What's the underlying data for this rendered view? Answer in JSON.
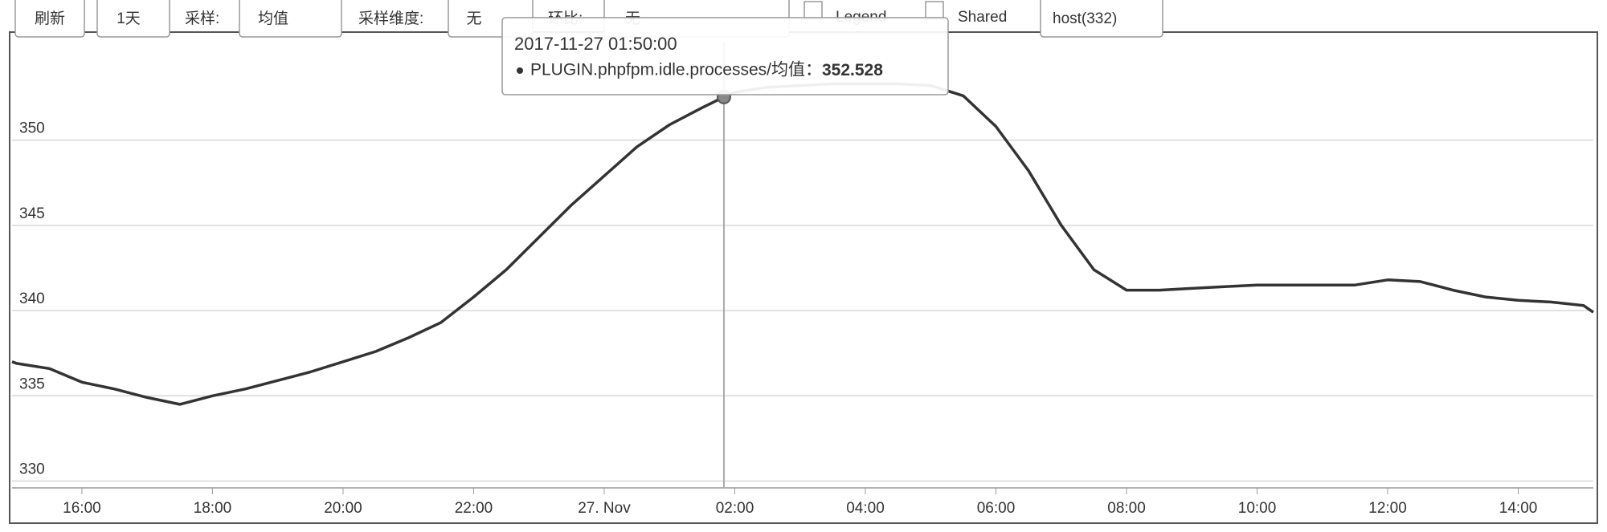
{
  "toolbar": {
    "refresh": "刷新",
    "range": "1天",
    "sample_label": "采样:",
    "sample": "均值",
    "dimension_label": "采样维度:",
    "dimension": "无",
    "compare_label": "环比:",
    "compare": "无",
    "legend": "Legend",
    "shared": "Shared",
    "host": "host(332)"
  },
  "chart_data": {
    "type": "line",
    "x": [
      14.93,
      15.0,
      15.5,
      16.0,
      16.5,
      17.0,
      17.5,
      18.0,
      18.5,
      19.0,
      19.5,
      20.0,
      20.5,
      21.0,
      21.5,
      22.0,
      22.5,
      23.0,
      23.5,
      24.0,
      24.5,
      25.0,
      25.5,
      25.8333,
      26.0,
      26.5,
      27.0,
      27.5,
      28.0,
      28.5,
      29.0,
      29.5,
      30.0,
      30.5,
      31.0,
      31.5,
      32.0,
      32.5,
      33.0,
      33.5,
      34.0,
      34.5,
      35.0,
      35.5,
      36.0,
      36.5,
      37.0,
      37.5,
      38.0,
      38.5,
      39.0,
      39.15
    ],
    "series": [
      {
        "name": "PLUGIN.phpfpm.idle.processes/均值",
        "color": "#333333",
        "values": [
          337.0,
          336.9,
          336.6,
          335.8,
          335.4,
          334.9,
          334.5,
          335.0,
          335.4,
          335.9,
          336.4,
          337.0,
          337.6,
          338.4,
          339.3,
          340.8,
          342.4,
          344.3,
          346.2,
          347.9,
          349.6,
          350.9,
          351.9,
          352.528,
          352.8,
          353.1,
          353.2,
          353.3,
          353.3,
          353.3,
          353.2,
          352.6,
          350.8,
          348.2,
          345.0,
          342.4,
          341.2,
          341.2,
          341.3,
          341.4,
          341.5,
          341.5,
          341.5,
          341.5,
          341.8,
          341.7,
          341.2,
          340.8,
          340.6,
          340.5,
          340.3,
          339.9
        ]
      }
    ],
    "xlim": [
      14.93,
      39.15
    ],
    "xticks": [
      {
        "value": 16,
        "label": "16:00"
      },
      {
        "value": 18,
        "label": "18:00"
      },
      {
        "value": 20,
        "label": "20:00"
      },
      {
        "value": 22,
        "label": "22:00"
      },
      {
        "value": 24,
        "label": "27. Nov"
      },
      {
        "value": 26,
        "label": "02:00"
      },
      {
        "value": 28,
        "label": "04:00"
      },
      {
        "value": 30,
        "label": "06:00"
      },
      {
        "value": 32,
        "label": "08:00"
      },
      {
        "value": 34,
        "label": "10:00"
      },
      {
        "value": 36,
        "label": "12:00"
      },
      {
        "value": 38,
        "label": "14:00"
      }
    ],
    "ylim": [
      329.6,
      355.3
    ],
    "yticks": [
      330,
      335,
      340,
      345,
      350
    ],
    "grid": true,
    "tooltip": {
      "title": "2017-11-27 01:50:00",
      "label": "PLUGIN.phpfpm.idle.processes/均值：",
      "x": 25.8333,
      "value": 352.528
    }
  }
}
